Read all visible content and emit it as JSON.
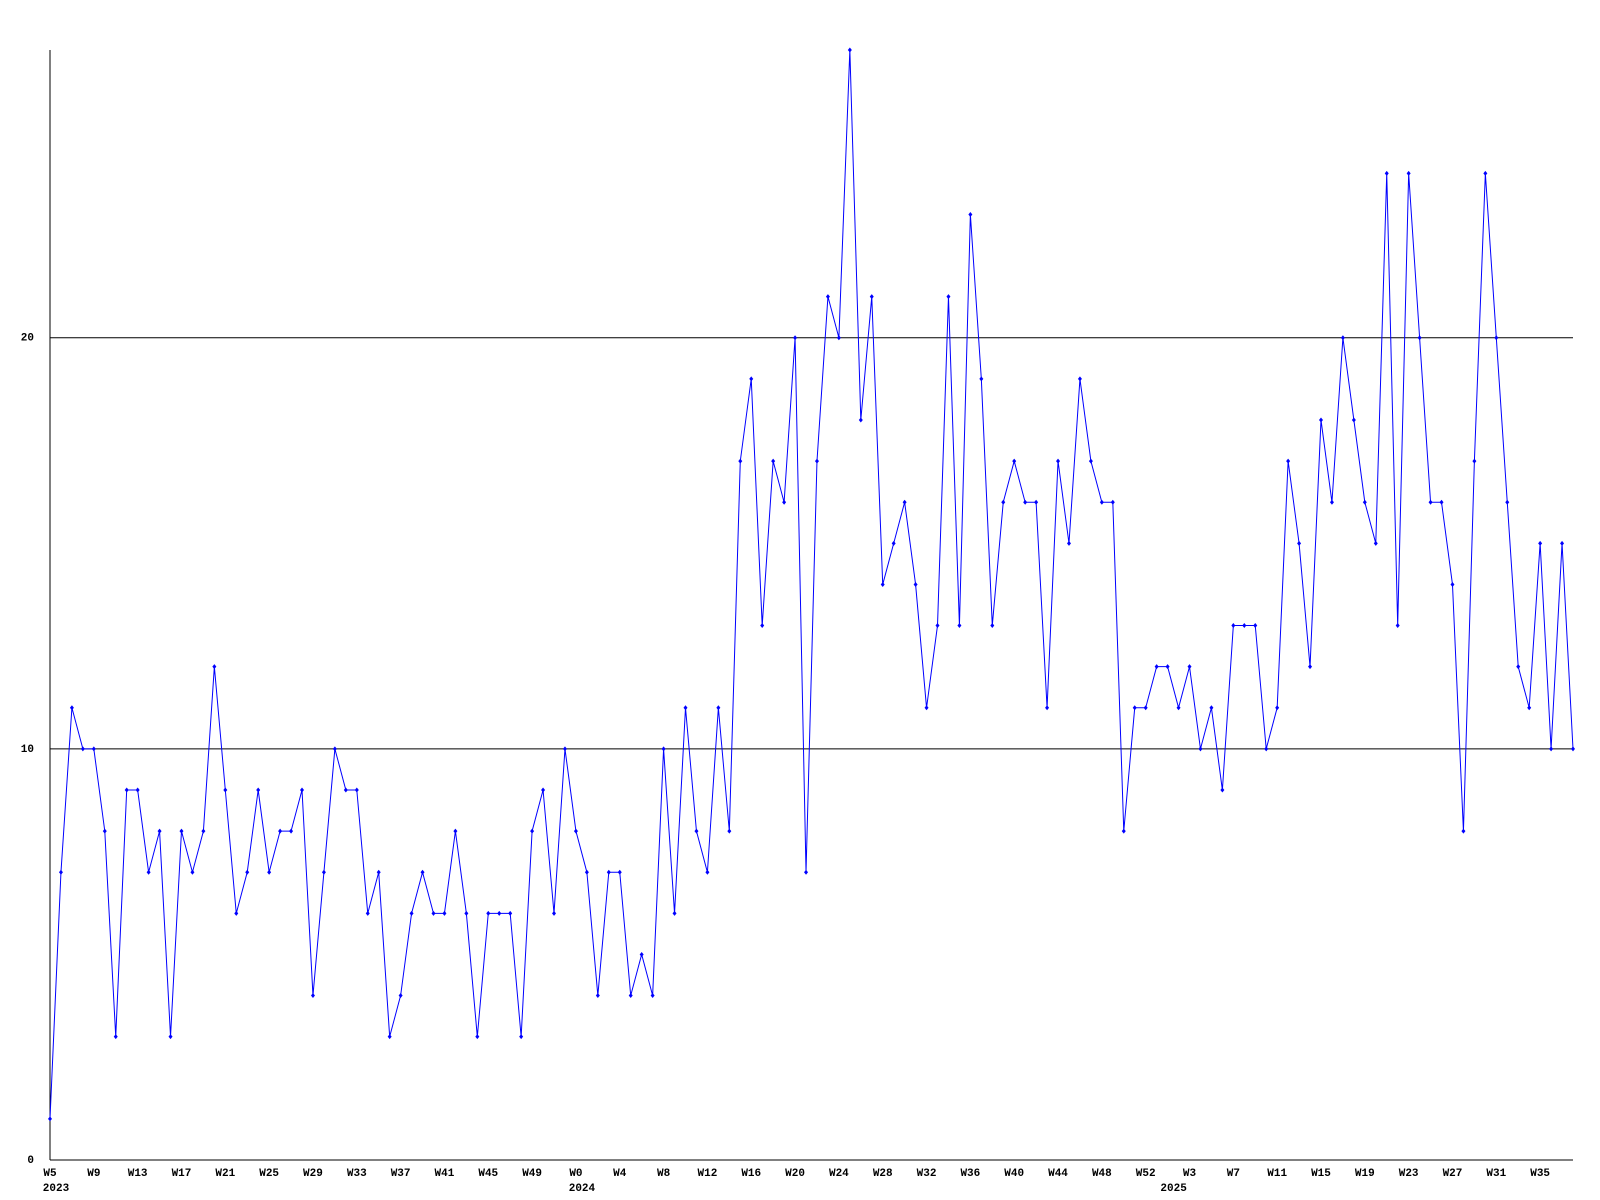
{
  "chart_data": {
    "type": "line",
    "categories": [
      "W5",
      null,
      null,
      null,
      "W9",
      null,
      null,
      null,
      "W13",
      null,
      null,
      null,
      "W17",
      null,
      null,
      null,
      "W21",
      null,
      null,
      null,
      "W25",
      null,
      null,
      null,
      "W29",
      null,
      null,
      null,
      "W33",
      null,
      null,
      null,
      "W37",
      null,
      null,
      null,
      "W41",
      null,
      null,
      null,
      "W45",
      null,
      null,
      null,
      "W49",
      null,
      null,
      null,
      "W0",
      null,
      null,
      null,
      "W4",
      null,
      null,
      null,
      "W8",
      null,
      null,
      null,
      "W12",
      null,
      null,
      null,
      "W16",
      null,
      null,
      null,
      "W20",
      null,
      null,
      null,
      "W24",
      null,
      null,
      null,
      "W28",
      null,
      null,
      null,
      "W32",
      null,
      null,
      null,
      "W36",
      null,
      null,
      null,
      "W40",
      null,
      null,
      null,
      "W44",
      null,
      null,
      null,
      "W48",
      null,
      null,
      null,
      "W52",
      null,
      null,
      null,
      "W3",
      null,
      null,
      null,
      "W7",
      null,
      null,
      null,
      "W11",
      null,
      null,
      null,
      "W15",
      null,
      null,
      null,
      "W19",
      null,
      null,
      null,
      "W23",
      null,
      null,
      null,
      "W27",
      null,
      null,
      null,
      "W31",
      null,
      null,
      null,
      "W35",
      null,
      null,
      null
    ],
    "years": [
      "2023",
      null,
      null,
      null,
      null,
      null,
      null,
      null,
      null,
      null,
      null,
      null,
      null,
      null,
      null,
      null,
      null,
      null,
      null,
      null,
      null,
      null,
      null,
      null,
      null,
      null,
      null,
      null,
      null,
      null,
      null,
      null,
      null,
      null,
      null,
      null,
      null,
      null,
      null,
      null,
      null,
      null,
      null,
      null,
      null,
      null,
      null,
      null,
      "2024",
      null,
      null,
      null,
      null,
      null,
      null,
      null,
      null,
      null,
      null,
      null,
      null,
      null,
      null,
      null,
      null,
      null,
      null,
      null,
      null,
      null,
      null,
      null,
      null,
      null,
      null,
      null,
      null,
      null,
      null,
      null,
      null,
      null,
      null,
      null,
      null,
      null,
      null,
      null,
      null,
      null,
      null,
      null,
      null,
      null,
      null,
      null,
      null,
      null,
      null,
      null,
      null,
      null,
      "2025",
      null,
      null,
      null,
      null,
      null,
      null,
      null,
      null,
      null,
      null,
      null,
      null,
      null,
      null,
      null,
      null,
      null,
      null,
      null,
      null,
      null,
      null,
      null,
      null,
      null,
      null,
      null,
      null,
      null,
      null,
      null,
      null,
      null,
      null,
      null,
      null,
      null
    ],
    "series": [
      {
        "color": "#0000ff",
        "values": [
          1,
          7,
          11,
          10,
          10,
          8,
          3,
          9,
          9,
          7,
          8,
          3,
          8,
          7,
          8,
          12,
          9,
          6,
          7,
          9,
          7,
          8,
          8,
          9,
          4,
          7,
          10,
          9,
          9,
          6,
          7,
          3,
          4,
          6,
          7,
          6,
          6,
          8,
          6,
          3,
          6,
          6,
          6,
          3,
          8,
          9,
          6,
          10,
          8,
          7,
          4,
          7,
          7,
          4,
          5,
          4,
          10,
          6,
          11,
          8,
          7,
          11,
          8,
          17,
          19,
          13,
          17,
          16,
          20,
          7,
          17,
          21,
          20,
          27,
          18,
          21,
          14,
          15,
          16,
          14,
          11,
          13,
          21,
          13,
          23,
          19,
          13,
          16,
          17,
          16,
          16,
          11,
          17,
          15,
          19,
          17,
          16,
          16,
          8,
          11,
          11,
          12,
          12,
          11,
          12,
          10,
          11,
          9,
          13,
          13,
          13,
          10,
          11,
          17,
          15,
          12,
          18,
          16,
          20,
          18,
          16,
          15,
          24,
          13,
          24,
          20,
          16,
          16,
          14,
          8,
          17,
          24,
          20,
          16,
          12,
          11,
          15,
          10,
          15,
          10
        ]
      }
    ],
    "ylim": [
      0,
      27
    ],
    "yticks": [
      0,
      10,
      20
    ],
    "grid": true,
    "grid_color": "#000000"
  }
}
